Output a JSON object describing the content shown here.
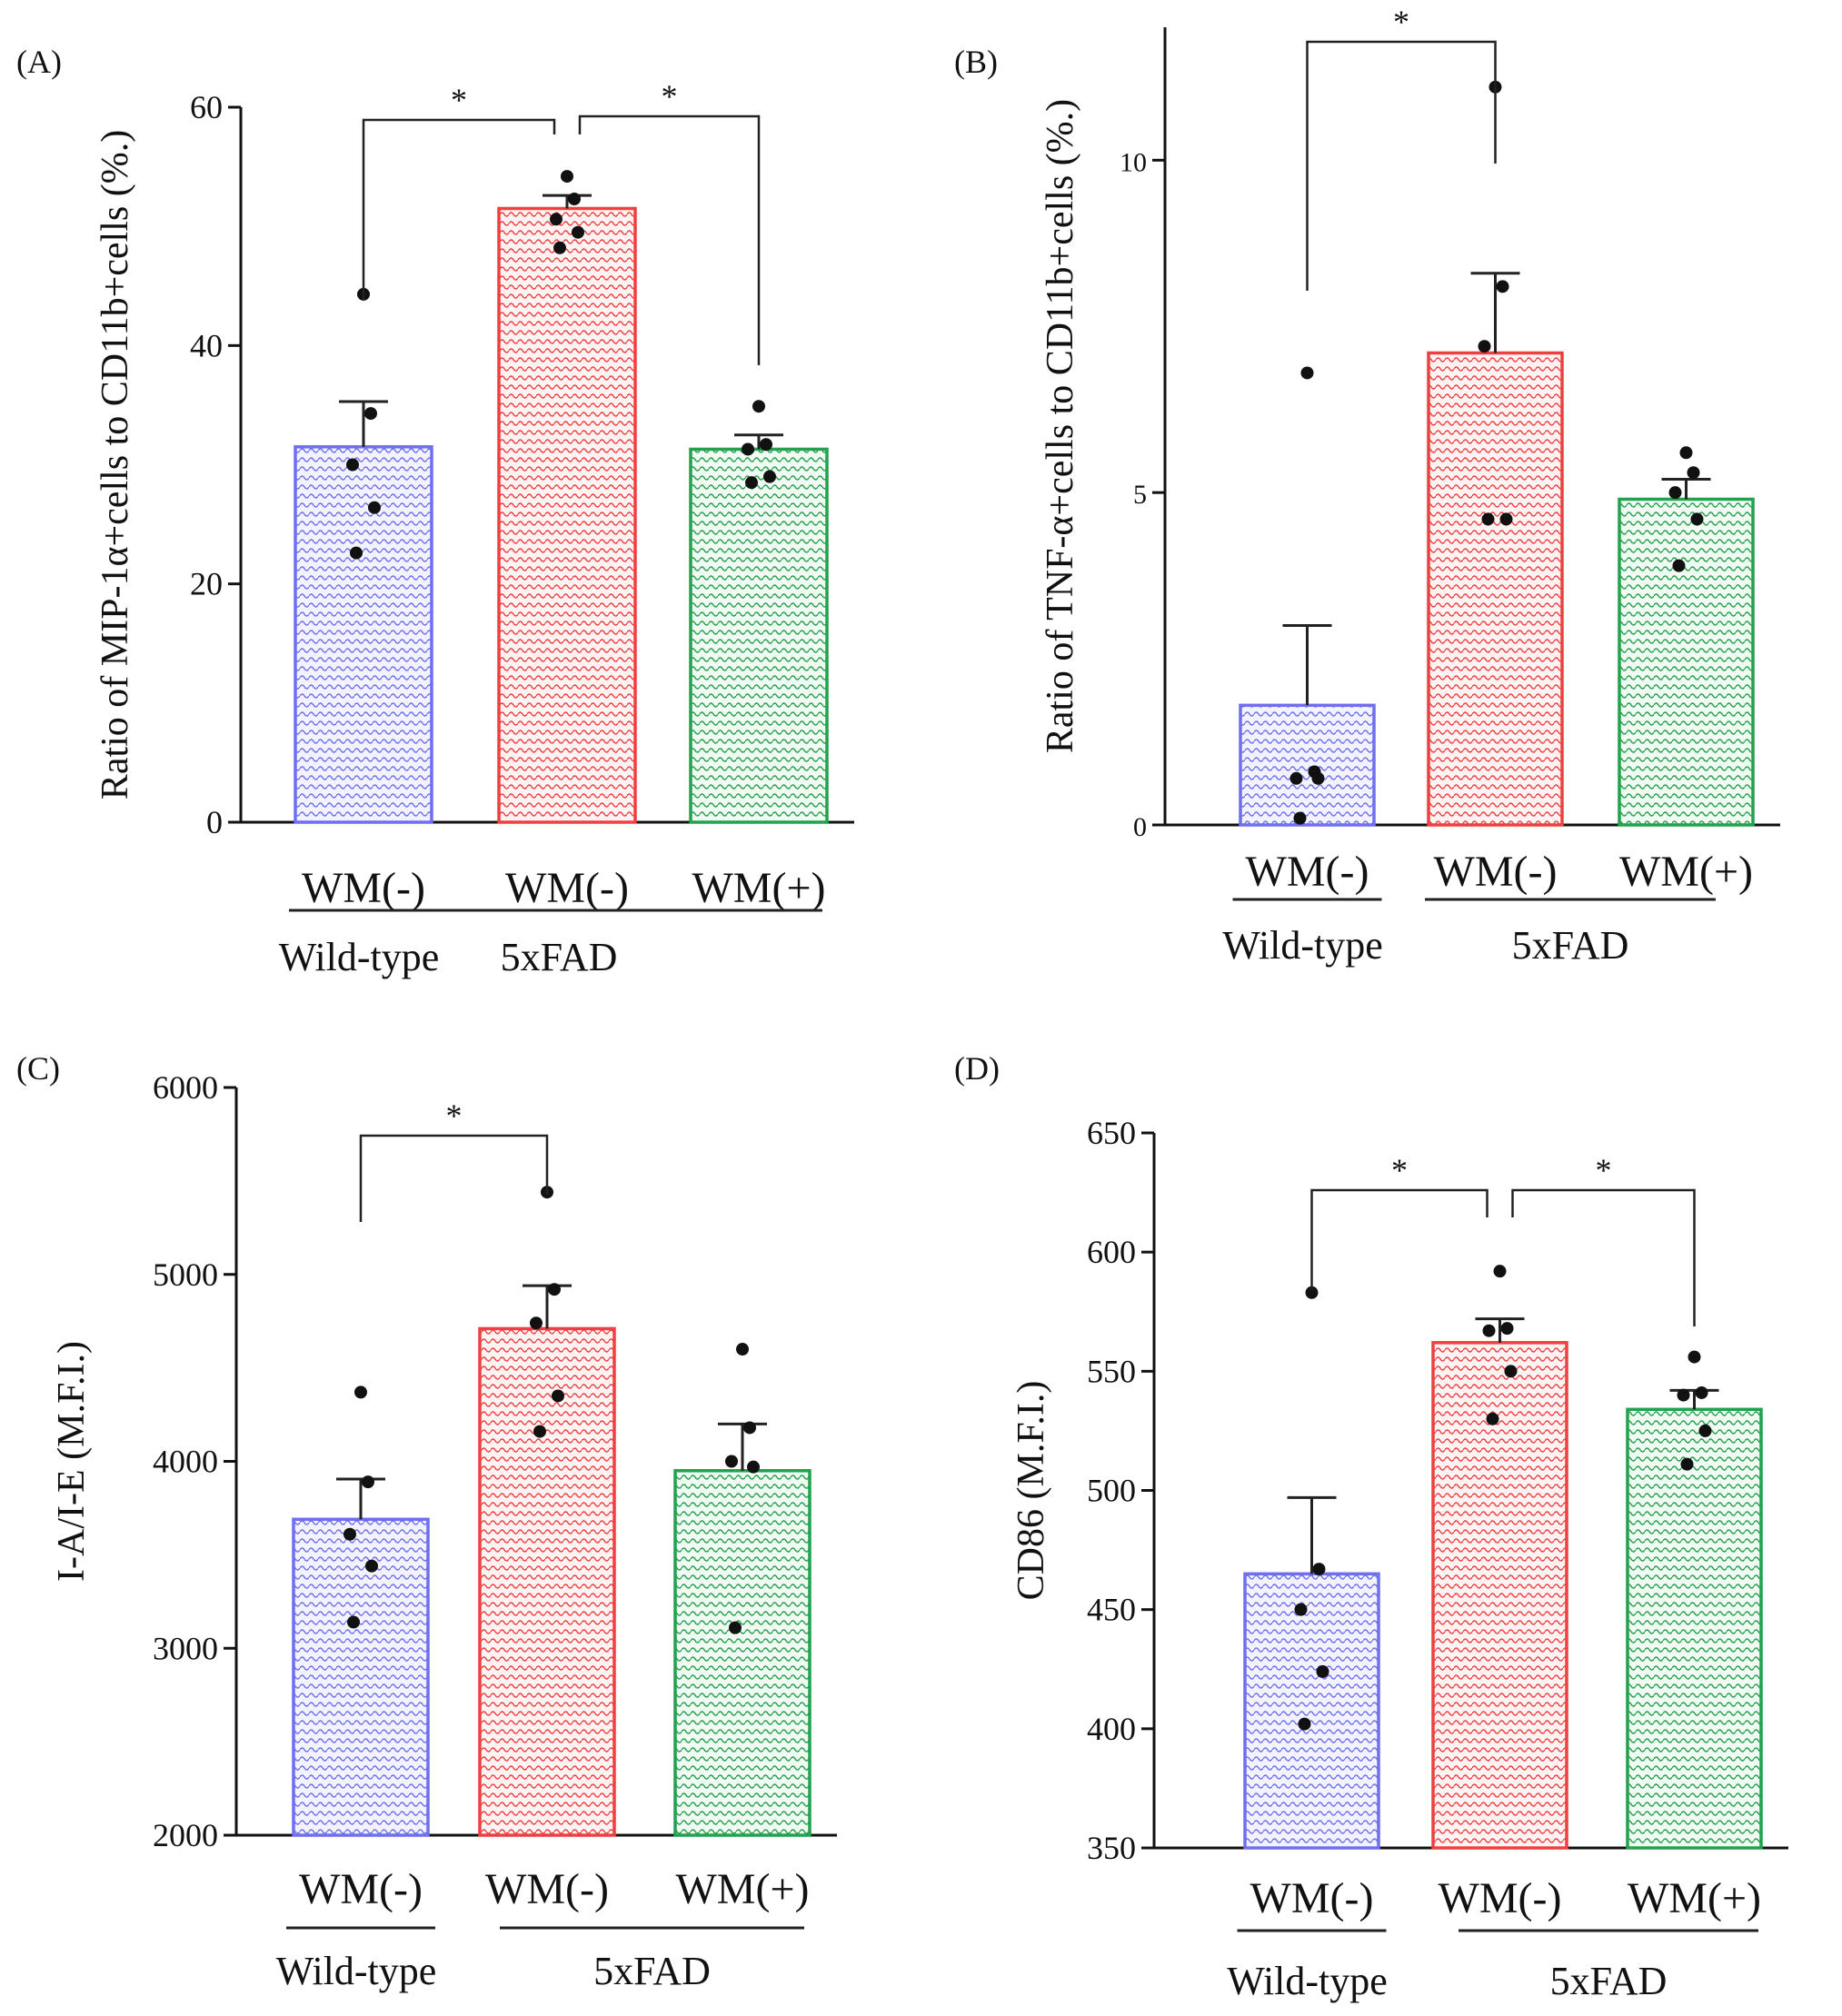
{
  "colors": {
    "wild_type": "#6f6ff0",
    "wm_minus": "#ee4040",
    "wm_plus": "#23a14d",
    "points": "#111111",
    "axis": "#111111"
  },
  "chart_data": [
    {
      "panel": "(A)",
      "type": "bar",
      "ylabel": "Ratio of MIP-1α+cells to CD11b+cells (%.)",
      "ylim": [
        0,
        60
      ],
      "ticks": [
        0,
        20,
        40,
        60
      ],
      "categories": [
        "WM(-)",
        "WM(-)",
        "WM(+)"
      ],
      "groups": [
        "Wild-type",
        "5xFAD"
      ],
      "values": [
        31.5,
        51.5,
        31.3
      ],
      "errors": [
        3.8,
        1.1,
        1.2
      ],
      "points": [
        [
          44.3,
          34.3,
          30.0,
          26.4,
          22.6
        ],
        [
          54.2,
          52.3,
          50.6,
          49.5,
          48.2
        ],
        [
          34.9,
          31.7,
          31.3,
          29.0,
          28.5
        ]
      ],
      "significance": [
        {
          "from": 0,
          "to": 1,
          "label": "*"
        },
        {
          "from": 1,
          "to": 2,
          "label": "*"
        }
      ]
    },
    {
      "panel": "(B)",
      "type": "bar",
      "ylabel": "Ratio of TNF-α+cells to CD11b+cells (%.)",
      "ylim": [
        0,
        12
      ],
      "ticks": [
        0,
        5,
        10
      ],
      "categories": [
        "WM(-)",
        "WM(-)",
        "WM(+)"
      ],
      "groups": [
        "Wild-type",
        "5xFAD"
      ],
      "values": [
        1.8,
        7.1,
        4.9
      ],
      "errors": [
        1.2,
        1.2,
        0.3
      ],
      "points": [
        [
          6.8,
          0.8,
          0.7,
          0.7,
          0.1
        ],
        [
          11.1,
          8.1,
          7.2,
          4.6,
          4.6
        ],
        [
          5.6,
          5.3,
          5.0,
          4.6,
          3.9
        ]
      ],
      "significance": [
        {
          "from": 0,
          "to": 1,
          "label": "*"
        }
      ]
    },
    {
      "panel": "(C)",
      "type": "bar",
      "ylabel": "I-A/I-E (M.F.I.)",
      "ylim": [
        2000,
        6000
      ],
      "ticks": [
        2000,
        3000,
        4000,
        5000,
        6000
      ],
      "categories": [
        "WM(-)",
        "WM(-)",
        "WM(+)"
      ],
      "groups": [
        "Wild-type",
        "5xFAD"
      ],
      "values": [
        3690,
        4710,
        3950
      ],
      "errors": [
        215,
        230,
        250
      ],
      "points": [
        [
          4370,
          3890,
          3610,
          3440,
          3140
        ],
        [
          5440,
          4920,
          4740,
          4350,
          4160
        ],
        [
          4600,
          4180,
          4000,
          3970,
          3110
        ]
      ],
      "significance": [
        {
          "from": 0,
          "to": 1,
          "label": "*"
        }
      ]
    },
    {
      "panel": "(D)",
      "type": "bar",
      "ylabel": "CD86 (M.F.I.)",
      "ylim": [
        350,
        650
      ],
      "ticks": [
        350,
        400,
        450,
        500,
        550,
        600,
        650
      ],
      "categories": [
        "WM(-)",
        "WM(-)",
        "WM(+)"
      ],
      "groups": [
        "Wild-type",
        "5xFAD"
      ],
      "values": [
        465,
        562,
        534
      ],
      "errors": [
        32,
        10,
        8
      ],
      "points": [
        [
          583,
          467,
          450,
          424,
          402
        ],
        [
          592,
          568,
          567,
          550,
          530
        ],
        [
          556,
          541,
          540,
          525,
          511
        ]
      ],
      "significance": [
        {
          "from": 0,
          "to": 1,
          "label": "*"
        },
        {
          "from": 1,
          "to": 2,
          "label": "*"
        }
      ]
    }
  ]
}
